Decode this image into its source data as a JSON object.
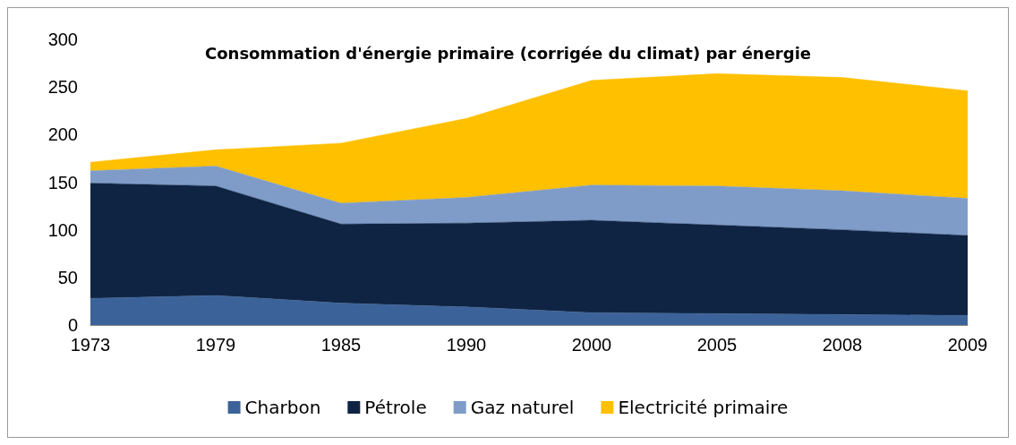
{
  "chart_data": {
    "type": "area",
    "title": "Consommation d'énergie primaire (corrigée du climat) par énergie",
    "stacked": true,
    "categories": [
      "1973",
      "1979",
      "1985",
      "1990",
      "2000",
      "2005",
      "2008",
      "2009"
    ],
    "series": [
      {
        "name": "Charbon",
        "color": "#3c6399",
        "values": [
          28,
          31,
          23,
          19,
          13,
          12,
          11,
          10
        ]
      },
      {
        "name": "Pétrole",
        "color": "#0f2443",
        "values": [
          121,
          115,
          83,
          88,
          97,
          93,
          89,
          84
        ]
      },
      {
        "name": "Gaz naturel",
        "color": "#7f9cc9",
        "values": [
          13,
          21,
          22,
          27,
          37,
          41,
          41,
          39
        ]
      },
      {
        "name": "Electricité primaire",
        "color": "#ffc000",
        "values": [
          9,
          17,
          63,
          83,
          110,
          118,
          119,
          113
        ]
      }
    ],
    "ylim": [
      0,
      300
    ],
    "yticks": [
      0,
      50,
      100,
      150,
      200,
      250,
      300
    ],
    "grid": false,
    "legend": "bottom"
  }
}
